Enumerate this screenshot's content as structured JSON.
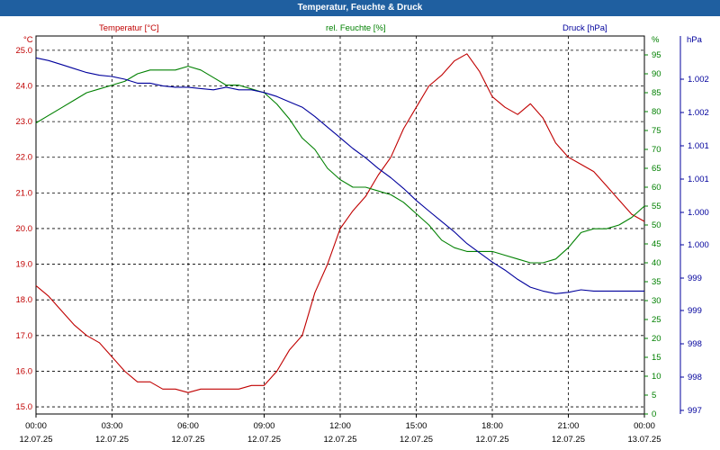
{
  "window": {
    "title": "Temperatur, Feuchte & Druck"
  },
  "colors": {
    "temperature": "#c00000",
    "humidity": "#008000",
    "pressure": "#00009c",
    "frame": "#1f5fa0"
  },
  "chart_data": {
    "type": "line",
    "title": "Temperatur, Feuchte & Druck",
    "grid": true,
    "x_ticks": [
      {
        "time": "00:00",
        "date": "12.07.25"
      },
      {
        "time": "03:00",
        "date": "12.07.25"
      },
      {
        "time": "06:00",
        "date": "12.07.25"
      },
      {
        "time": "09:00",
        "date": "12.07.25"
      },
      {
        "time": "12:00",
        "date": "12.07.25"
      },
      {
        "time": "15:00",
        "date": "12.07.25"
      },
      {
        "time": "18:00",
        "date": "12.07.25"
      },
      {
        "time": "21:00",
        "date": "12.07.25"
      },
      {
        "time": "00:00",
        "date": "13.07.25"
      }
    ],
    "axes": {
      "temperature": {
        "label": "Temperatur [°C]",
        "unit": "°C",
        "ylim": [
          14.8,
          25.4
        ],
        "ticks": [
          "15.0",
          "16.0",
          "17.0",
          "18.0",
          "19.0",
          "20.0",
          "21.0",
          "22.0",
          "23.0",
          "24.0",
          "25.0"
        ]
      },
      "humidity": {
        "label": "rel. Feuchte [%]",
        "unit": "%",
        "ylim": [
          0,
          100
        ],
        "ticks": [
          "0",
          "5",
          "10",
          "15",
          "20",
          "25",
          "30",
          "35",
          "40",
          "45",
          "50",
          "55",
          "60",
          "65",
          "70",
          "75",
          "80",
          "85",
          "90",
          "95"
        ]
      },
      "pressure": {
        "label": "Druck [hPa]",
        "unit": "hPa",
        "ticks": [
          "997",
          "998",
          "998",
          "999",
          "999",
          "1.000",
          "1.000",
          "1.001",
          "1.001",
          "1.002",
          "1.002"
        ]
      }
    },
    "series": [
      {
        "name": "Temperatur [°C]",
        "axis": "temperature",
        "x": [
          0,
          0.5,
          1,
          1.5,
          2,
          2.5,
          3,
          3.5,
          4,
          4.5,
          5,
          5.5,
          6,
          6.5,
          7,
          7.5,
          8,
          8.5,
          9,
          9.5,
          10,
          10.5,
          11,
          11.5,
          12,
          12.5,
          13,
          13.5,
          14,
          14.5,
          15,
          15.5,
          16,
          16.5,
          17,
          17.5,
          18,
          18.5,
          19,
          19.5,
          20,
          20.5,
          21,
          21.5,
          22,
          22.5,
          23,
          23.5,
          24
        ],
        "values": [
          18.4,
          18.1,
          17.7,
          17.3,
          17.0,
          16.8,
          16.4,
          16.0,
          15.7,
          15.7,
          15.5,
          15.5,
          15.4,
          15.5,
          15.5,
          15.5,
          15.5,
          15.6,
          15.6,
          16.0,
          16.6,
          17.0,
          18.2,
          19.0,
          20.0,
          20.5,
          20.9,
          21.5,
          22.0,
          22.8,
          23.4,
          24.0,
          24.3,
          24.7,
          24.9,
          24.4,
          23.7,
          23.4,
          23.2,
          23.5,
          23.1,
          22.4,
          22.0,
          21.8,
          21.6,
          21.2,
          20.8,
          20.4,
          20.2
        ]
      },
      {
        "name": "rel. Feuchte [%]",
        "axis": "humidity",
        "x": [
          0,
          0.5,
          1,
          1.5,
          2,
          2.5,
          3,
          3.5,
          4,
          4.5,
          5,
          5.5,
          6,
          6.5,
          7,
          7.5,
          8,
          8.5,
          9,
          9.5,
          10,
          10.5,
          11,
          11.5,
          12,
          12.5,
          13,
          13.5,
          14,
          14.5,
          15,
          15.5,
          16,
          16.5,
          17,
          17.5,
          18,
          18.5,
          19,
          19.5,
          20,
          20.5,
          21,
          21.5,
          22,
          22.5,
          23,
          23.5,
          24
        ],
        "values": [
          77,
          79,
          81,
          83,
          85,
          86,
          87,
          88,
          90,
          91,
          91,
          91,
          92,
          91,
          89,
          87,
          87,
          86,
          85,
          82,
          78,
          73,
          70,
          65,
          62,
          60,
          60,
          59,
          58,
          56,
          53,
          50,
          46,
          44,
          43,
          43,
          43,
          42,
          41,
          40,
          40,
          41,
          44,
          48,
          49,
          49,
          50,
          52,
          55
        ]
      },
      {
        "name": "Druck [hPa]",
        "axis": "pressure",
        "x": [
          0,
          0.5,
          1,
          1.5,
          2,
          2.5,
          3,
          3.5,
          4,
          4.5,
          5,
          5.5,
          6,
          6.5,
          7,
          7.5,
          8,
          8.5,
          9,
          9.5,
          10,
          10.5,
          11,
          11.5,
          12,
          12.5,
          13,
          13.5,
          14,
          14.5,
          15,
          15.5,
          16,
          16.5,
          17,
          17.5,
          18,
          18.5,
          19,
          19.5,
          20,
          20.5,
          21,
          21.5,
          22,
          22.5,
          23,
          23.5,
          24
        ],
        "values": [
          1002.32,
          1002.28,
          1002.22,
          1002.16,
          1002.1,
          1002.06,
          1002.04,
          1002.0,
          1001.94,
          1001.94,
          1001.9,
          1001.88,
          1001.88,
          1001.86,
          1001.84,
          1001.88,
          1001.84,
          1001.84,
          1001.8,
          1001.74,
          1001.66,
          1001.58,
          1001.44,
          1001.28,
          1001.12,
          1000.96,
          1000.82,
          1000.66,
          1000.52,
          1000.36,
          1000.18,
          1000.02,
          999.86,
          999.7,
          999.52,
          999.38,
          999.24,
          999.12,
          998.98,
          998.86,
          998.8,
          998.76,
          998.78,
          998.82,
          998.8,
          998.8,
          998.8,
          998.8,
          998.8
        ]
      }
    ]
  }
}
